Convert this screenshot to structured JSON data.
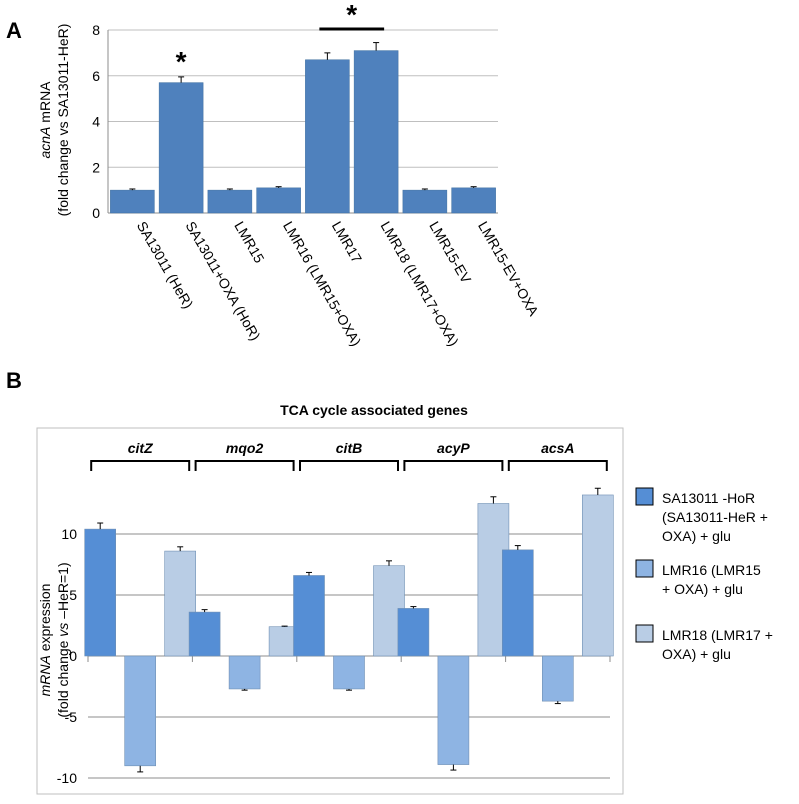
{
  "chart_data": [
    {
      "panel": "A",
      "type": "bar",
      "ylabel_italic": "acnA",
      "ylabel_rest": " mRNA",
      "ylabel_line2": "(fold change vs SA13011-HeR)",
      "ylim": [
        0,
        8
      ],
      "yticks": [
        0,
        2,
        4,
        6,
        8
      ],
      "grid": true,
      "color": "#4f81bd",
      "categories": [
        "SA13011 (HeR)",
        "SA13011+OXA (HoR)",
        "LMR15",
        "LMR16 (LMR15+OXA)",
        "LMR17",
        "LMR18 (LMR17+OXA)",
        "LMR15-EV",
        "LMR15-EV+OXA"
      ],
      "values": [
        1.0,
        5.7,
        1.0,
        1.1,
        6.7,
        7.1,
        1.0,
        1.1
      ],
      "errors": [
        0.05,
        0.25,
        0.05,
        0.05,
        0.3,
        0.35,
        0.05,
        0.05
      ],
      "annotations": [
        "*",
        "*"
      ]
    },
    {
      "panel": "B",
      "type": "bar",
      "title": "TCA cycle associated genes",
      "ylabel_italic_1": "mRNA",
      "ylabel_rest_1": " expression",
      "ylabel_line2_a": "(fold change ",
      "ylabel_line2_italic": "vs",
      "ylabel_line2_b": " –HeR=1)",
      "ylim": [
        -10,
        15
      ],
      "yticks": [
        -10,
        -5,
        0,
        5,
        10
      ],
      "grid": true,
      "categories": [
        "citZ",
        "mqo2",
        "citB",
        "acyP",
        "acsA"
      ],
      "series": [
        {
          "name": "SA13011 -HoR (SA13011-HeR + OXA) + glu",
          "legend_lines": [
            "SA13011 -HoR",
            "(SA13011-HeR +",
            "OXA) + glu"
          ],
          "color": "#558ed5",
          "values": [
            10.4,
            3.6,
            6.6,
            3.9,
            8.7
          ],
          "errors": [
            0.5,
            0.2,
            0.25,
            0.15,
            0.35
          ]
        },
        {
          "name": "LMR16 (LMR15 + OXA) + glu",
          "legend_lines": [
            "LMR16 (LMR15",
            "+ OXA) + glu"
          ],
          "color": "#8eb4e3",
          "values": [
            -9.0,
            -2.7,
            -2.7,
            -8.9,
            -3.7
          ],
          "errors": [
            0.5,
            0.1,
            0.1,
            0.45,
            0.2
          ]
        },
        {
          "name": "LMR18 (LMR17 + OXA) + glu",
          "legend_lines": [
            "LMR18 (LMR17 +",
            "OXA) + glu"
          ],
          "color": "#b9cde5",
          "values": [
            8.6,
            2.4,
            7.4,
            12.5,
            13.2
          ],
          "errors": [
            0.35,
            0.05,
            0.4,
            0.55,
            0.55
          ]
        }
      ]
    }
  ]
}
